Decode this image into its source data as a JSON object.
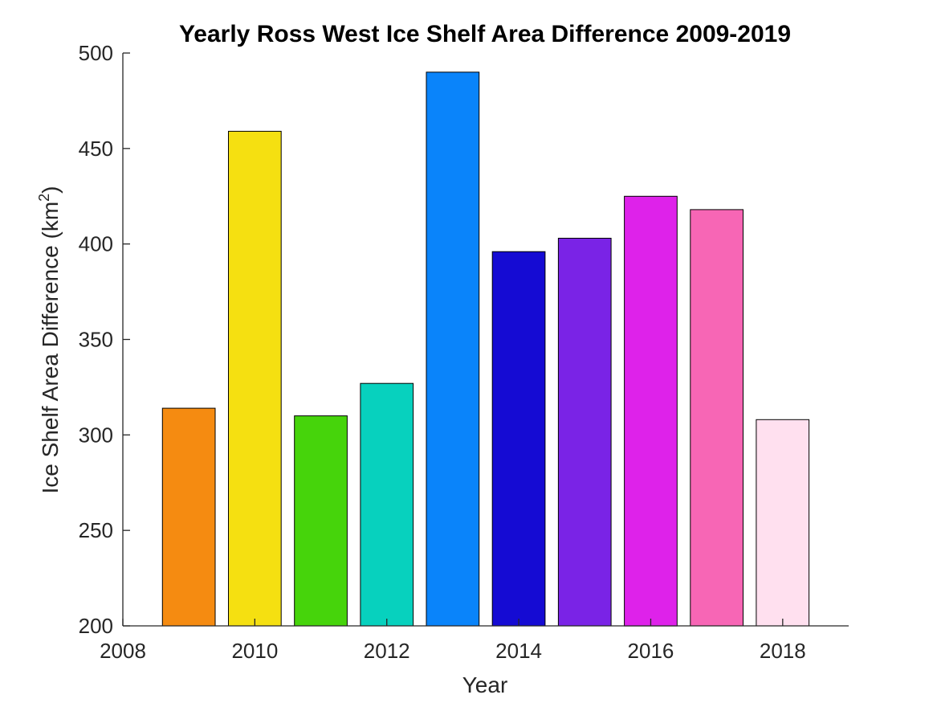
{
  "chart_data": {
    "type": "bar",
    "title": "Yearly Ross West Ice Shelf Area Difference 2009-2019",
    "xlabel": "Year",
    "ylabel_main": "Ice Shelf Area Difference (km",
    "ylabel_sup": "2",
    "ylabel_close": ")",
    "xlim": [
      2008,
      2019
    ],
    "ylim": [
      200,
      500
    ],
    "xticks": [
      2008,
      2010,
      2012,
      2014,
      2016,
      2018
    ],
    "yticks": [
      200,
      250,
      300,
      350,
      400,
      450,
      500
    ],
    "x": [
      2009,
      2010,
      2011,
      2012,
      2013,
      2014,
      2015,
      2016,
      2017,
      2018
    ],
    "values": [
      314,
      459,
      310,
      327,
      490,
      396,
      403,
      425,
      418,
      308
    ],
    "colors": [
      "#F58B11",
      "#F5E011",
      "#46D40B",
      "#07D1BE",
      "#0A84FA",
      "#150BD3",
      "#7A23E6",
      "#DE22EA",
      "#F766B5",
      "#FFE0EF"
    ],
    "grid": false,
    "legend": "none"
  }
}
